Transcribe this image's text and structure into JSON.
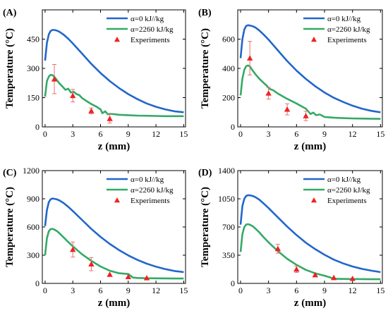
{
  "figure": {
    "legend_placement": "top-right",
    "grid": false
  },
  "chart_data": [
    {
      "panel_label": "(A)",
      "type": "line",
      "xlabel": "z (mm)",
      "ylabel": "Temperature (°C)",
      "xlim": [
        -0.3,
        15.2
      ],
      "ylim": [
        0,
        600
      ],
      "xticks": [
        0,
        3,
        6,
        9,
        12,
        15
      ],
      "yticks": [
        0,
        150,
        300,
        450
      ],
      "legend": [
        "α=0 kJ//kg",
        "α=2260 kJ/kg",
        "Experiments"
      ],
      "series": [
        {
          "name": "α=0 kJ//kg",
          "color": "#2266cc",
          "x": [
            0,
            0.2,
            0.4,
            0.6,
            0.8,
            1.0,
            1.2,
            1.5,
            2,
            2.5,
            3,
            4,
            5,
            6,
            7,
            8,
            9,
            10,
            11,
            12,
            13,
            14,
            15
          ],
          "y": [
            340,
            430,
            475,
            492,
            497,
            497,
            495,
            489,
            473,
            452,
            428,
            376,
            323,
            276,
            235,
            199,
            168,
            142,
            120,
            103,
            90,
            80,
            75
          ]
        },
        {
          "name": "α=2260 kJ/kg",
          "color": "#33aa66",
          "x": [
            0,
            0.2,
            0.4,
            0.6,
            0.8,
            1.0,
            1.3,
            1.6,
            1.9,
            2.2,
            2.5,
            2.8,
            3.1,
            3.4,
            3.7,
            4,
            4.5,
            5,
            5.5,
            6,
            6.2,
            6.5,
            6.8,
            7,
            7.5,
            8,
            9,
            10,
            11,
            12,
            13,
            14,
            15
          ],
          "y": [
            155,
            235,
            258,
            267,
            265,
            257,
            238,
            220,
            206,
            190,
            196,
            176,
            180,
            168,
            163,
            148,
            132,
            117,
            105,
            90,
            70,
            80,
            64,
            67,
            65,
            62,
            60,
            58,
            57,
            56,
            55,
            55,
            55
          ]
        }
      ],
      "experiments": {
        "name": "Experiments",
        "color": "#ee2222",
        "x": [
          1,
          3,
          5,
          7
        ],
        "y": [
          245,
          160,
          82,
          42
        ],
        "err": [
          75,
          32,
          15,
          22
        ]
      }
    },
    {
      "panel_label": "(B)",
      "type": "line",
      "xlabel": "z (mm)",
      "ylabel": "Temperature (°C)",
      "xlim": [
        -0.3,
        15.2
      ],
      "ylim": [
        0,
        800
      ],
      "xticks": [
        0,
        3,
        6,
        9,
        12,
        15
      ],
      "yticks": [
        0,
        200,
        400,
        600
      ],
      "legend": [
        "α=0 kJ//kg",
        "α=2260 kJ/kg",
        "Experiments"
      ],
      "series": [
        {
          "name": "α=0 kJ//kg",
          "color": "#2266cc",
          "x": [
            0,
            0.2,
            0.4,
            0.6,
            0.8,
            1.0,
            1.3,
            1.6,
            2,
            2.5,
            3,
            4,
            5,
            6,
            7,
            8,
            9,
            10,
            11,
            12,
            13,
            14,
            15
          ],
          "y": [
            470,
            600,
            665,
            690,
            695,
            693,
            688,
            679,
            660,
            630,
            597,
            523,
            450,
            385,
            328,
            278,
            235,
            199,
            170,
            145,
            125,
            110,
            100
          ]
        },
        {
          "name": "α=2260 kJ/kg",
          "color": "#33aa66",
          "x": [
            0,
            0.2,
            0.4,
            0.6,
            0.8,
            1.0,
            1.3,
            1.6,
            2,
            2.5,
            2.8,
            3.1,
            3.5,
            4,
            5,
            6,
            7,
            7.5,
            7.8,
            8.1,
            8.5,
            9,
            10,
            11,
            12,
            13,
            14,
            15
          ],
          "y": [
            215,
            330,
            390,
            415,
            420,
            413,
            385,
            360,
            330,
            300,
            282,
            260,
            250,
            228,
            192,
            160,
            125,
            88,
            98,
            80,
            85,
            68,
            63,
            60,
            58,
            57,
            56,
            55
          ]
        }
      ],
      "experiments": {
        "name": "Experiments",
        "color": "#ee2222",
        "x": [
          1,
          3,
          5,
          7
        ],
        "y": [
          470,
          230,
          120,
          75
        ],
        "err": [
          115,
          40,
          38,
          32
        ]
      }
    },
    {
      "panel_label": "(C)",
      "type": "line",
      "xlabel": "z (mm)",
      "ylabel": "Temperature (°C)",
      "xlim": [
        -0.3,
        15.2
      ],
      "ylim": [
        0,
        1200
      ],
      "xticks": [
        0,
        3,
        6,
        9,
        12,
        15
      ],
      "yticks": [
        0,
        300,
        600,
        900,
        1200
      ],
      "legend": [
        "α=0 kJ//kg",
        "α=2260 kJ/kg",
        "Experiments"
      ],
      "series": [
        {
          "name": "α=0 kJ//kg",
          "color": "#2266cc",
          "x": [
            0,
            0.2,
            0.4,
            0.6,
            0.8,
            1.0,
            1.3,
            1.6,
            2,
            2.5,
            3,
            4,
            5,
            6,
            7,
            8,
            9,
            10,
            11,
            12,
            13,
            14,
            15
          ],
          "y": [
            610,
            780,
            865,
            895,
            903,
            900,
            893,
            880,
            855,
            815,
            770,
            675,
            580,
            495,
            420,
            355,
            298,
            250,
            210,
            178,
            152,
            132,
            120
          ]
        },
        {
          "name": "α=2260 kJ/kg",
          "color": "#33aa66",
          "x": [
            0,
            0.2,
            0.4,
            0.6,
            0.8,
            1.0,
            1.3,
            1.6,
            2,
            2.5,
            3,
            4,
            5,
            6,
            7,
            8,
            9,
            9.5,
            10,
            11,
            12,
            13,
            14,
            15
          ],
          "y": [
            300,
            480,
            555,
            578,
            580,
            573,
            555,
            528,
            490,
            440,
            395,
            310,
            240,
            180,
            135,
            108,
            100,
            62,
            58,
            55,
            54,
            53,
            52,
            52
          ]
        }
      ],
      "experiments": {
        "name": "Experiments",
        "color": "#ee2222",
        "x": [
          3,
          5,
          7,
          9,
          11
        ],
        "y": [
          360,
          205,
          95,
          70,
          58
        ],
        "err": [
          80,
          70,
          0,
          0,
          0
        ]
      }
    },
    {
      "panel_label": "(D)",
      "type": "line",
      "xlabel": "z (mm)",
      "ylabel": "Temperature (°C)",
      "xlim": [
        -0.3,
        15.2
      ],
      "ylim": [
        0,
        1400
      ],
      "xticks": [
        0,
        3,
        6,
        9,
        12,
        15
      ],
      "yticks": [
        0,
        350,
        700,
        1050,
        1400
      ],
      "legend": [
        "α=0 kJ//kg",
        "α=2260 kJ/kg",
        "Experiments"
      ],
      "series": [
        {
          "name": "α=0 kJ//kg",
          "color": "#2266cc",
          "x": [
            0,
            0.2,
            0.4,
            0.6,
            0.8,
            1.0,
            1.3,
            1.6,
            2,
            2.5,
            3,
            4,
            5,
            6,
            7,
            8,
            9,
            10,
            11,
            12,
            13,
            14,
            15
          ],
          "y": [
            730,
            960,
            1050,
            1085,
            1095,
            1093,
            1085,
            1070,
            1040,
            990,
            935,
            820,
            705,
            600,
            505,
            425,
            355,
            295,
            248,
            210,
            180,
            158,
            140
          ]
        },
        {
          "name": "α=2260 kJ/kg",
          "color": "#33aa66",
          "x": [
            0,
            0.2,
            0.4,
            0.6,
            0.8,
            1.0,
            1.3,
            1.6,
            2,
            2.5,
            3,
            4,
            5,
            6,
            7,
            8,
            9,
            9.5,
            10,
            11,
            12,
            13,
            14,
            15
          ],
          "y": [
            390,
            610,
            700,
            730,
            735,
            728,
            710,
            680,
            635,
            570,
            510,
            400,
            305,
            230,
            168,
            125,
            95,
            78,
            58,
            55,
            54,
            53,
            52,
            52
          ]
        }
      ],
      "experiments": {
        "name": "Experiments",
        "color": "#ee2222",
        "x": [
          4,
          6,
          8,
          10,
          12
        ],
        "y": [
          430,
          175,
          105,
          70,
          60
        ],
        "err": [
          55,
          40,
          0,
          0,
          0
        ]
      }
    }
  ]
}
